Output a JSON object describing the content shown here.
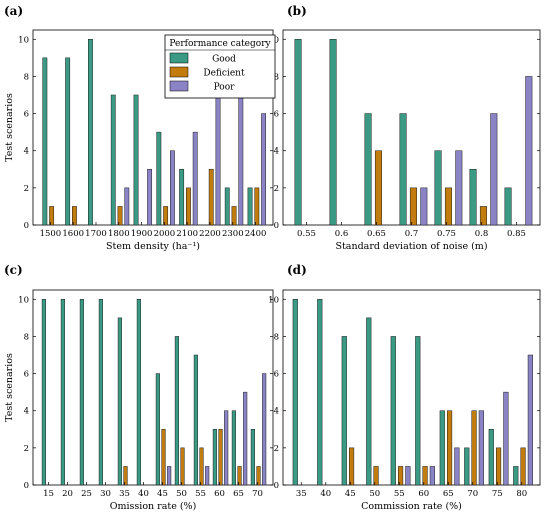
{
  "colors": {
    "Good": "#3a9a83",
    "Deficient": "#c27c0e",
    "Poor": "#8a84c6",
    "accent_edge": "#00e000"
  },
  "legend": {
    "title": "Performance category",
    "items": [
      {
        "label": "Good",
        "color": "#3a9a83"
      },
      {
        "label": "Deficient",
        "color": "#c27c0e"
      },
      {
        "label": "Poor",
        "color": "#8a84c6"
      }
    ]
  },
  "chart_data": [
    {
      "panel": "(a)",
      "type": "bar",
      "xlabel": "Stem density (ha⁻¹)",
      "ylabel": "Test scenarios",
      "ylim": [
        0,
        10.5
      ],
      "yticks": [
        0,
        2,
        4,
        6,
        8,
        10
      ],
      "categories": [
        "1500",
        "1600",
        "1700",
        "1800",
        "1900",
        "2000",
        "2100",
        "2200",
        "2300",
        "2400"
      ],
      "series": [
        {
          "name": "Good",
          "values": [
            9,
            9,
            10,
            7,
            7,
            5,
            3,
            0,
            2,
            2
          ]
        },
        {
          "name": "Deficient",
          "values": [
            1,
            1,
            0,
            1,
            0,
            1,
            2,
            3,
            1,
            2
          ]
        },
        {
          "name": "Poor",
          "values": [
            0,
            0,
            0,
            2,
            3,
            4,
            5,
            7,
            7,
            6
          ]
        }
      ]
    },
    {
      "panel": "(b)",
      "type": "bar",
      "xlabel": "Standard deviation of noise (m)",
      "ylabel": "",
      "ylim": [
        0,
        10.5
      ],
      "yticks": [
        0,
        2,
        4,
        6,
        8,
        10
      ],
      "categories": [
        "0.55",
        "0.6",
        "0.65",
        "0.7",
        "0.75",
        "0.8",
        "0.85"
      ],
      "series": [
        {
          "name": "Good",
          "values": [
            10,
            10,
            6,
            6,
            4,
            3,
            2
          ]
        },
        {
          "name": "Deficient",
          "values": [
            0,
            0,
            4,
            2,
            2,
            1,
            0
          ]
        },
        {
          "name": "Poor",
          "values": [
            0,
            0,
            0,
            2,
            4,
            6,
            8
          ]
        }
      ]
    },
    {
      "panel": "(c)",
      "type": "bar",
      "xlabel": "Omission rate (%)",
      "ylabel": "Test scenarios",
      "ylim": [
        0,
        10.5
      ],
      "yticks": [
        0,
        2,
        4,
        6,
        8,
        10
      ],
      "categories": [
        "15",
        "20",
        "25",
        "30",
        "35",
        "40",
        "45",
        "50",
        "55",
        "60",
        "65",
        "70"
      ],
      "series": [
        {
          "name": "Good",
          "values": [
            10,
            10,
            10,
            10,
            9,
            10,
            6,
            8,
            7,
            3,
            4,
            3
          ]
        },
        {
          "name": "Deficient",
          "values": [
            0,
            0,
            0,
            0,
            1,
            0,
            3,
            2,
            2,
            3,
            1,
            1
          ]
        },
        {
          "name": "Poor",
          "values": [
            0,
            0,
            0,
            0,
            0,
            0,
            1,
            0,
            1,
            4,
            5,
            6
          ]
        }
      ]
    },
    {
      "panel": "(d)",
      "type": "bar",
      "xlabel": "Commission rate (%)",
      "ylabel": "",
      "ylim": [
        0,
        10.5
      ],
      "yticks": [
        0,
        2,
        4,
        6,
        8,
        10
      ],
      "categories": [
        "35",
        "40",
        "45",
        "50",
        "55",
        "60",
        "65",
        "70",
        "75",
        "80"
      ],
      "series": [
        {
          "name": "Good",
          "values": [
            10,
            10,
            8,
            9,
            8,
            8,
            4,
            2,
            3,
            1
          ]
        },
        {
          "name": "Deficient",
          "values": [
            0,
            0,
            2,
            1,
            1,
            1,
            4,
            4,
            2,
            2
          ]
        },
        {
          "name": "Poor",
          "values": [
            0,
            0,
            0,
            0,
            1,
            1,
            2,
            4,
            5,
            7
          ]
        }
      ]
    }
  ]
}
